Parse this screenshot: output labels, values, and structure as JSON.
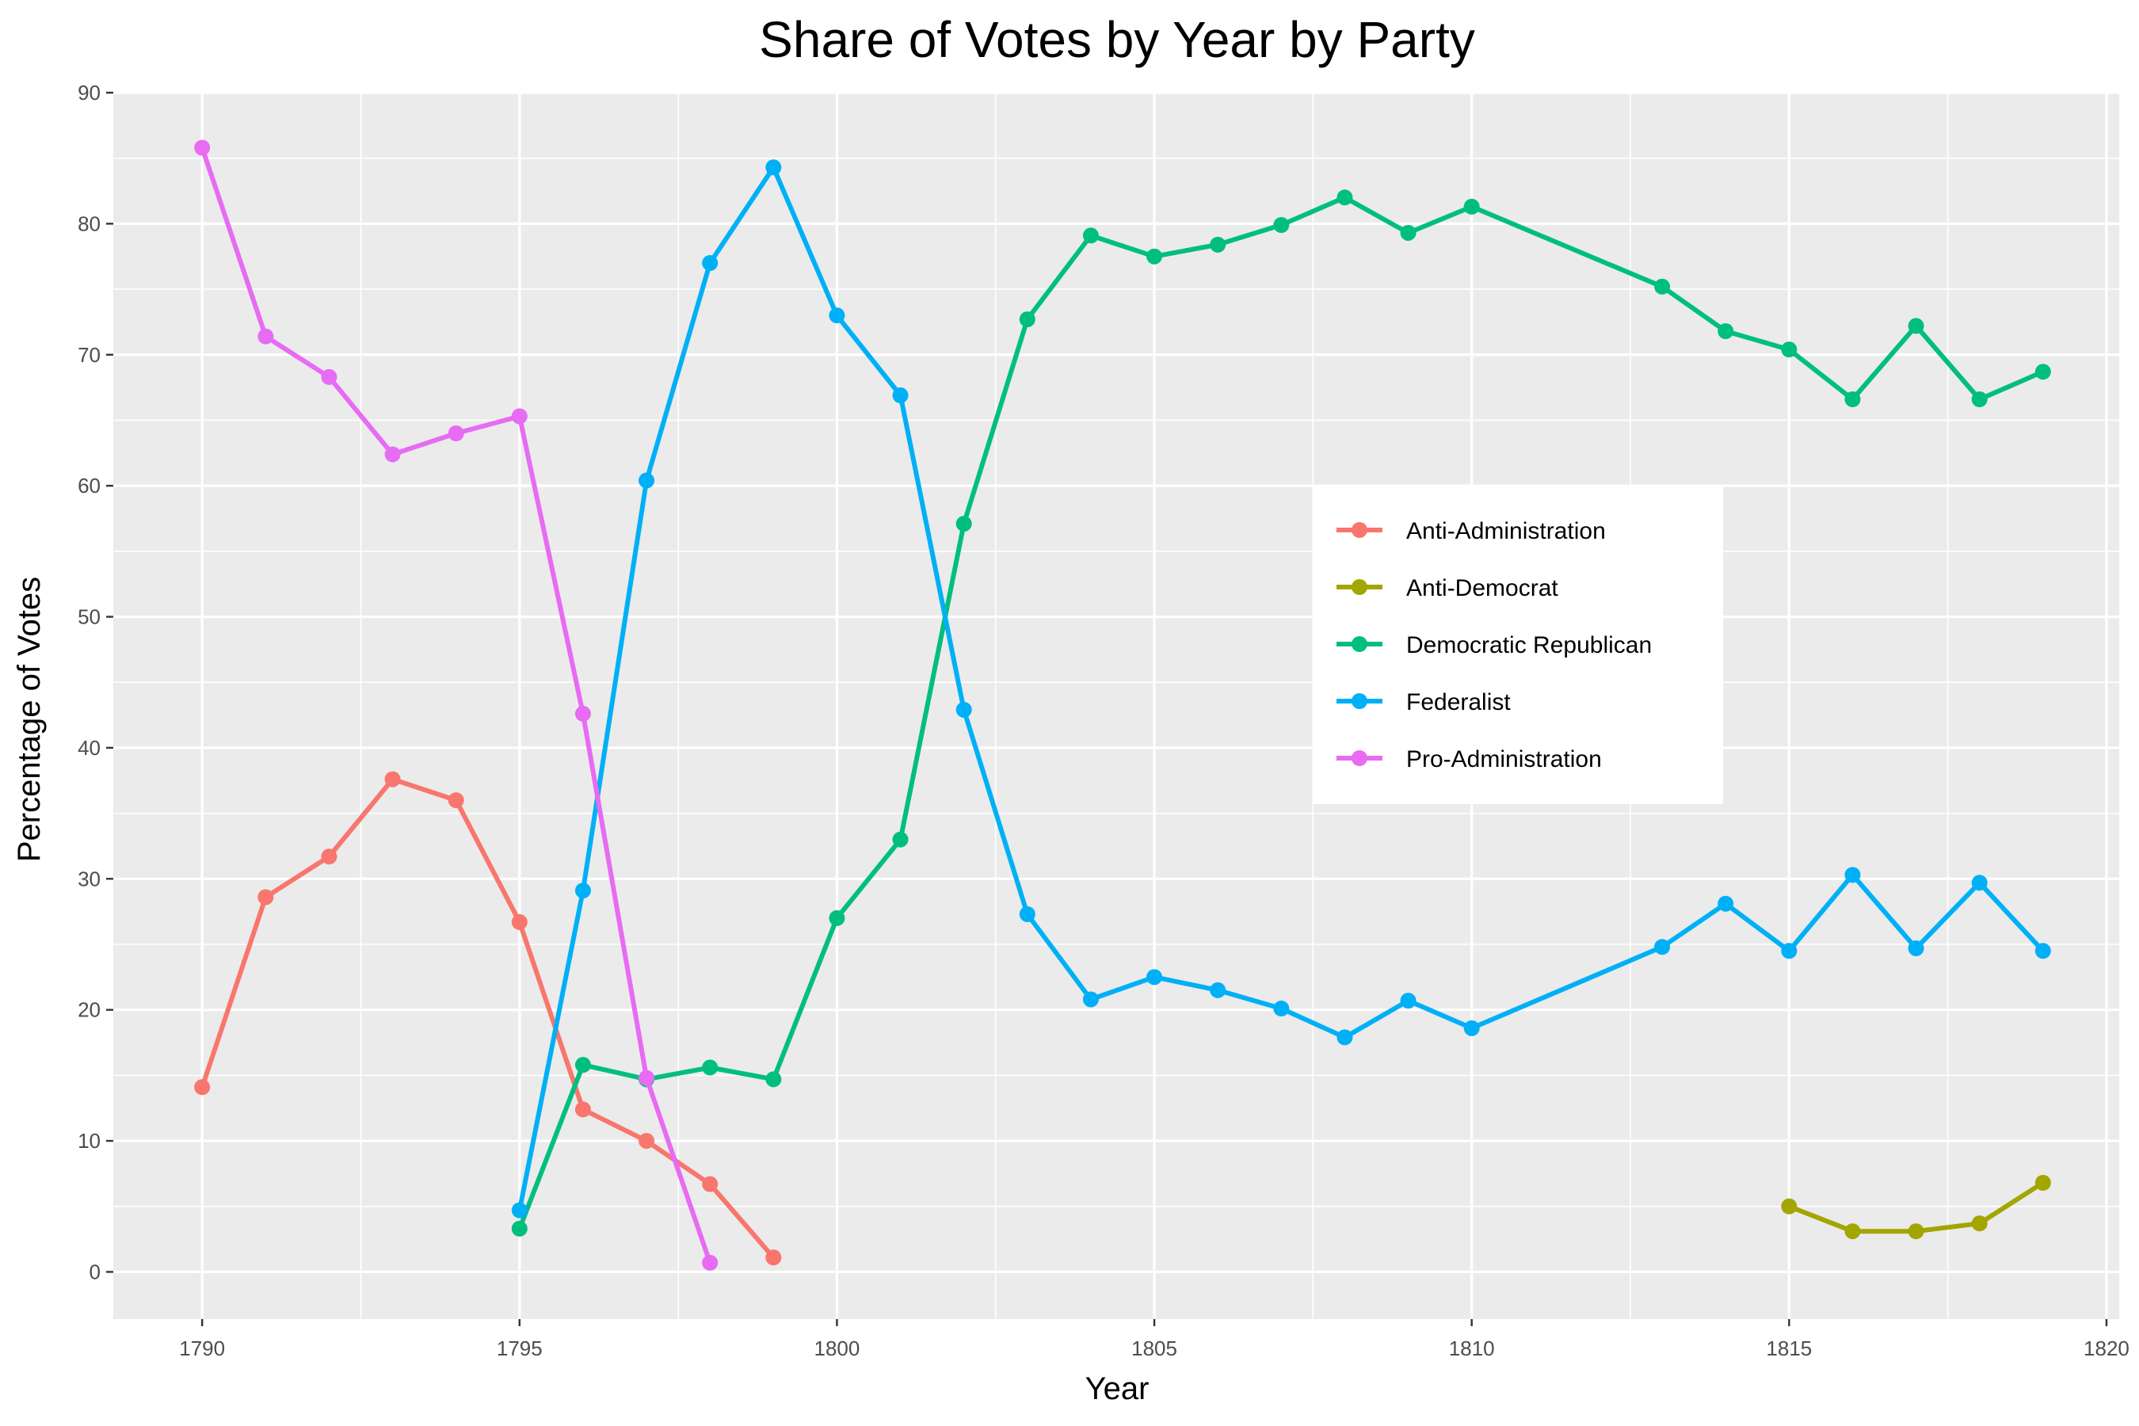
{
  "chart_data": {
    "type": "line",
    "title": "Share of Votes by Year by Party",
    "xlabel": "Year",
    "ylabel": "Percentage of Votes",
    "xlim": [
      1788.6,
      1820.2
    ],
    "ylim": [
      -3.6,
      90
    ],
    "x_ticks": [
      1790,
      1795,
      1800,
      1805,
      1810,
      1815,
      1820
    ],
    "y_ticks": [
      0,
      10,
      20,
      30,
      40,
      50,
      60,
      70,
      80,
      90
    ],
    "grid": true,
    "legend_position": "center-right",
    "series": [
      {
        "name": "Anti-Administration",
        "color": "#F8766D",
        "x": [
          1790,
          1791,
          1792,
          1793,
          1794,
          1795,
          1796,
          1797,
          1798,
          1799
        ],
        "y": [
          14.1,
          28.6,
          31.7,
          37.6,
          36.0,
          26.7,
          12.4,
          10.0,
          6.7,
          1.1
        ]
      },
      {
        "name": "Anti-Democrat",
        "color": "#A3A500",
        "x": [
          1815,
          1816,
          1817,
          1818,
          1819
        ],
        "y": [
          5.0,
          3.1,
          3.1,
          3.7,
          6.8
        ]
      },
      {
        "name": "Democratic Republican",
        "color": "#00BF7D",
        "x": [
          1795,
          1796,
          1797,
          1798,
          1799,
          1800,
          1801,
          1802,
          1803,
          1804,
          1805,
          1806,
          1807,
          1808,
          1809,
          1810,
          1813,
          1814,
          1815,
          1816,
          1817,
          1818,
          1819
        ],
        "y": [
          3.3,
          15.8,
          14.7,
          15.6,
          14.7,
          27.0,
          33.0,
          57.1,
          72.7,
          79.1,
          77.5,
          78.4,
          79.9,
          82.0,
          79.3,
          81.3,
          75.2,
          71.8,
          70.4,
          66.6,
          72.2,
          66.6,
          68.7
        ]
      },
      {
        "name": "Federalist",
        "color": "#00B0F6",
        "x": [
          1795,
          1796,
          1797,
          1798,
          1799,
          1800,
          1801,
          1802,
          1803,
          1804,
          1805,
          1806,
          1807,
          1808,
          1809,
          1810,
          1813,
          1814,
          1815,
          1816,
          1817,
          1818,
          1819
        ],
        "y": [
          4.7,
          29.1,
          60.4,
          77.0,
          84.3,
          73.0,
          66.9,
          42.9,
          27.3,
          20.8,
          22.5,
          21.5,
          20.1,
          17.9,
          20.7,
          18.6,
          24.8,
          28.1,
          24.5,
          30.3,
          24.7,
          29.7,
          24.5
        ]
      },
      {
        "name": "Pro-Administration",
        "color": "#E76BF3",
        "x": [
          1790,
          1791,
          1792,
          1793,
          1794,
          1795,
          1796,
          1797,
          1798
        ],
        "y": [
          85.8,
          71.4,
          68.3,
          62.4,
          64.0,
          65.3,
          42.6,
          14.8,
          0.7
        ]
      }
    ]
  }
}
